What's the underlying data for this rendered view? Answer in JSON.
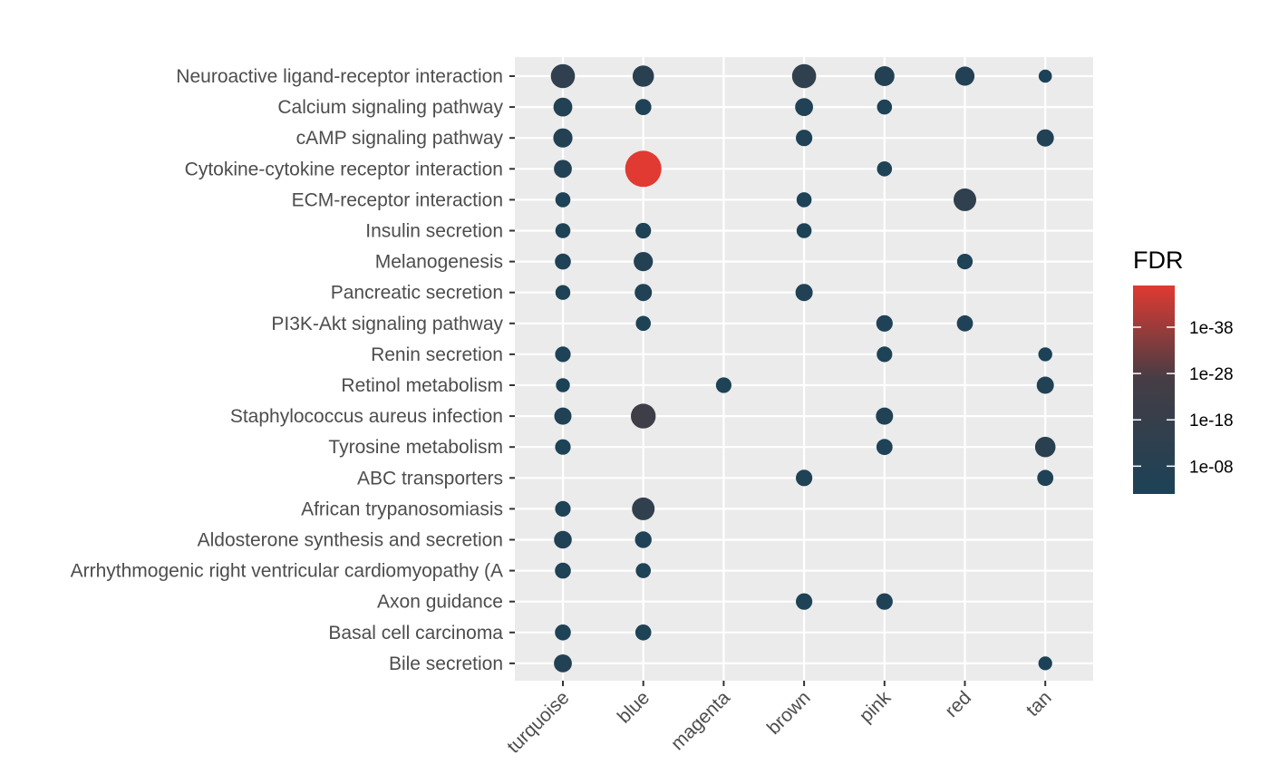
{
  "chart_data": {
    "type": "scatter",
    "subtype": "dot-plot",
    "title": "",
    "xlabel": "",
    "ylabel": "",
    "x_categories": [
      "turquoise",
      "blue",
      "magenta",
      "brown",
      "pink",
      "red",
      "tan"
    ],
    "y_categories": [
      "Neuroactive ligand-receptor interaction",
      "Calcium signaling pathway",
      "cAMP signaling pathway",
      "Cytokine-cytokine receptor interaction",
      "ECM-receptor interaction",
      "Insulin secretion",
      "Melanogenesis",
      "Pancreatic secretion",
      "PI3K-Akt signaling pathway",
      "Renin secretion",
      "Retinol metabolism",
      "Staphylococcus aureus infection",
      "Tyrosine metabolism",
      "ABC transporters",
      "African trypanosomiasis",
      "Aldosterone synthesis and secretion",
      "Arrhythmogenic right ventricular cardiomyopathy (A",
      "Axon guidance",
      "Basal cell carcinoma",
      "Bile secretion"
    ],
    "color_scale": {
      "title": "FDR",
      "log_scale": true,
      "low_color": "#1c4257",
      "high_color": "#e03a32",
      "mid_color": "#453d45",
      "min_exponent": -2,
      "max_exponent": -47,
      "ticks": [
        "1e-38",
        "1e-28",
        "1e-18",
        "1e-08"
      ],
      "tick_exponents": [
        -38,
        -28,
        -18,
        -8
      ]
    },
    "points": [
      {
        "x": "turquoise",
        "y": "Neuroactive ligand-receptor interaction",
        "fdr_exp": -14,
        "size": 0.55
      },
      {
        "x": "blue",
        "y": "Neuroactive ligand-receptor interaction",
        "fdr_exp": -10,
        "size": 0.45
      },
      {
        "x": "brown",
        "y": "Neuroactive ligand-receptor interaction",
        "fdr_exp": -14,
        "size": 0.55
      },
      {
        "x": "pink",
        "y": "Neuroactive ligand-receptor interaction",
        "fdr_exp": -7,
        "size": 0.4
      },
      {
        "x": "red",
        "y": "Neuroactive ligand-receptor interaction",
        "fdr_exp": -6,
        "size": 0.37
      },
      {
        "x": "tan",
        "y": "Neuroactive ligand-receptor interaction",
        "fdr_exp": -2,
        "size": 0.15
      },
      {
        "x": "turquoise",
        "y": "Calcium signaling pathway",
        "fdr_exp": -6,
        "size": 0.36
      },
      {
        "x": "blue",
        "y": "Calcium signaling pathway",
        "fdr_exp": -4,
        "size": 0.26
      },
      {
        "x": "brown",
        "y": "Calcium signaling pathway",
        "fdr_exp": -5,
        "size": 0.33
      },
      {
        "x": "pink",
        "y": "Calcium signaling pathway",
        "fdr_exp": -3,
        "size": 0.22
      },
      {
        "x": "turquoise",
        "y": "cAMP signaling pathway",
        "fdr_exp": -7,
        "size": 0.37
      },
      {
        "x": "brown",
        "y": "cAMP signaling pathway",
        "fdr_exp": -4,
        "size": 0.27
      },
      {
        "x": "tan",
        "y": "cAMP signaling pathway",
        "fdr_exp": -5,
        "size": 0.3
      },
      {
        "x": "turquoise",
        "y": "Cytokine-cytokine receptor interaction",
        "fdr_exp": -6,
        "size": 0.33
      },
      {
        "x": "blue",
        "y": "Cytokine-cytokine receptor interaction",
        "fdr_exp": -47,
        "size": 1.0
      },
      {
        "x": "pink",
        "y": "Cytokine-cytokine receptor interaction",
        "fdr_exp": -3,
        "size": 0.22
      },
      {
        "x": "turquoise",
        "y": "ECM-receptor interaction",
        "fdr_exp": -3,
        "size": 0.22
      },
      {
        "x": "brown",
        "y": "ECM-receptor interaction",
        "fdr_exp": -3,
        "size": 0.22
      },
      {
        "x": "red",
        "y": "ECM-receptor interaction",
        "fdr_exp": -14,
        "size": 0.5
      },
      {
        "x": "turquoise",
        "y": "Insulin secretion",
        "fdr_exp": -3,
        "size": 0.22
      },
      {
        "x": "blue",
        "y": "Insulin secretion",
        "fdr_exp": -3,
        "size": 0.24
      },
      {
        "x": "brown",
        "y": "Insulin secretion",
        "fdr_exp": -3,
        "size": 0.22
      },
      {
        "x": "turquoise",
        "y": "Melanogenesis",
        "fdr_exp": -4,
        "size": 0.25
      },
      {
        "x": "blue",
        "y": "Melanogenesis",
        "fdr_exp": -7,
        "size": 0.37
      },
      {
        "x": "red",
        "y": "Melanogenesis",
        "fdr_exp": -3,
        "size": 0.24
      },
      {
        "x": "turquoise",
        "y": "Pancreatic secretion",
        "fdr_exp": -3,
        "size": 0.21
      },
      {
        "x": "blue",
        "y": "Pancreatic secretion",
        "fdr_exp": -5,
        "size": 0.3
      },
      {
        "x": "brown",
        "y": "Pancreatic secretion",
        "fdr_exp": -5,
        "size": 0.3
      },
      {
        "x": "blue",
        "y": "PI3K-Akt signaling pathway",
        "fdr_exp": -3,
        "size": 0.22
      },
      {
        "x": "pink",
        "y": "PI3K-Akt signaling pathway",
        "fdr_exp": -4,
        "size": 0.27
      },
      {
        "x": "red",
        "y": "PI3K-Akt signaling pathway",
        "fdr_exp": -4,
        "size": 0.26
      },
      {
        "x": "turquoise",
        "y": "Renin secretion",
        "fdr_exp": -3,
        "size": 0.24
      },
      {
        "x": "pink",
        "y": "Renin secretion",
        "fdr_exp": -3,
        "size": 0.24
      },
      {
        "x": "tan",
        "y": "Renin secretion",
        "fdr_exp": -2,
        "size": 0.18
      },
      {
        "x": "turquoise",
        "y": "Retinol metabolism",
        "fdr_exp": -2,
        "size": 0.18
      },
      {
        "x": "magenta",
        "y": "Retinol metabolism",
        "fdr_exp": -3,
        "size": 0.24
      },
      {
        "x": "tan",
        "y": "Retinol metabolism",
        "fdr_exp": -5,
        "size": 0.3
      },
      {
        "x": "turquoise",
        "y": "Staphylococcus aureus infection",
        "fdr_exp": -5,
        "size": 0.3
      },
      {
        "x": "blue",
        "y": "Staphylococcus aureus infection",
        "fdr_exp": -22,
        "size": 0.58
      },
      {
        "x": "pink",
        "y": "Staphylococcus aureus infection",
        "fdr_exp": -5,
        "size": 0.3
      },
      {
        "x": "turquoise",
        "y": "Tyrosine metabolism",
        "fdr_exp": -3,
        "size": 0.24
      },
      {
        "x": "pink",
        "y": "Tyrosine metabolism",
        "fdr_exp": -4,
        "size": 0.26
      },
      {
        "x": "tan",
        "y": "Tyrosine metabolism",
        "fdr_exp": -10,
        "size": 0.42
      },
      {
        "x": "brown",
        "y": "ABC transporters",
        "fdr_exp": -4,
        "size": 0.27
      },
      {
        "x": "tan",
        "y": "ABC transporters",
        "fdr_exp": -4,
        "size": 0.26
      },
      {
        "x": "turquoise",
        "y": "African trypanosomiasis",
        "fdr_exp": -3,
        "size": 0.24
      },
      {
        "x": "blue",
        "y": "African trypanosomiasis",
        "fdr_exp": -14,
        "size": 0.5
      },
      {
        "x": "turquoise",
        "y": "Aldosterone synthesis and secretion",
        "fdr_exp": -5,
        "size": 0.32
      },
      {
        "x": "blue",
        "y": "Aldosterone synthesis and secretion",
        "fdr_exp": -4,
        "size": 0.28
      },
      {
        "x": "turquoise",
        "y": "Arrhythmogenic right ventricular cardiomyopathy (A",
        "fdr_exp": -3,
        "size": 0.25
      },
      {
        "x": "blue",
        "y": "Arrhythmogenic right ventricular cardiomyopathy (A",
        "fdr_exp": -3,
        "size": 0.22
      },
      {
        "x": "brown",
        "y": "Axon guidance",
        "fdr_exp": -4,
        "size": 0.27
      },
      {
        "x": "pink",
        "y": "Axon guidance",
        "fdr_exp": -4,
        "size": 0.27
      },
      {
        "x": "turquoise",
        "y": "Basal cell carcinoma",
        "fdr_exp": -3,
        "size": 0.25
      },
      {
        "x": "blue",
        "y": "Basal cell carcinoma",
        "fdr_exp": -3,
        "size": 0.25
      },
      {
        "x": "turquoise",
        "y": "Bile secretion",
        "fdr_exp": -6,
        "size": 0.33
      },
      {
        "x": "tan",
        "y": "Bile secretion",
        "fdr_exp": -2,
        "size": 0.17
      }
    ],
    "grid": true,
    "legend": "right"
  }
}
